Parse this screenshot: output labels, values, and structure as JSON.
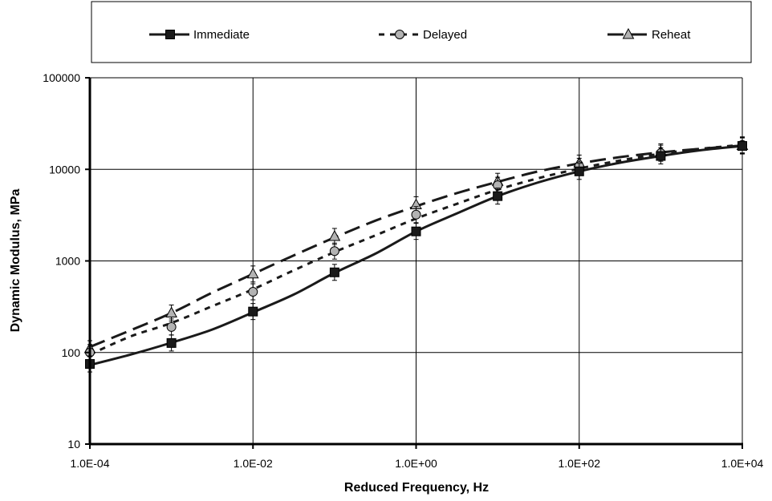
{
  "chart_data": {
    "type": "line",
    "xlabel": "Reduced Frequency, Hz",
    "ylabel": "Dynamic Modulus, MPa",
    "x_scale": "log",
    "y_scale": "log",
    "xlim": [
      0.0001,
      10000
    ],
    "ylim": [
      10,
      100000
    ],
    "x_ticks": [
      0.0001,
      0.01,
      1,
      100,
      10000
    ],
    "x_tick_labels": [
      "1.0E-04",
      "1.0E-02",
      "1.0E+00",
      "1.0E+02",
      "1.0E+04"
    ],
    "y_ticks": [
      10,
      100,
      1000,
      10000,
      100000
    ],
    "y_tick_labels": [
      "10",
      "100",
      "1000",
      "10000",
      "100000"
    ],
    "grid": true,
    "legend_position": "top",
    "series": [
      {
        "name": "Immediate",
        "marker": "square",
        "line_style": "solid",
        "color": "#1a1a1a",
        "x": [
          0.0001,
          0.001,
          0.01,
          0.1,
          1,
          10,
          100,
          1000,
          10000
        ],
        "y": [
          75,
          127,
          280,
          750,
          2100,
          5100,
          9500,
          14000,
          18000
        ],
        "curve_y": [
          73,
          95,
          128,
          178,
          275,
          430,
          740,
          1200,
          2100,
          3300,
          5100,
          7200,
          9500,
          11800,
          14000,
          16200,
          18000
        ]
      },
      {
        "name": "Delayed",
        "marker": "circle",
        "line_style": "dotted",
        "color": "#1a1a1a",
        "x": [
          0.0001,
          0.001,
          0.01,
          0.1,
          1,
          10,
          100,
          1000,
          10000
        ],
        "y": [
          100,
          190,
          460,
          1280,
          3200,
          6700,
          10800,
          15000,
          18500
        ],
        "curve_y": [
          95,
          150,
          210,
          320,
          490,
          790,
          1250,
          1900,
          2900,
          4200,
          6000,
          8000,
          10200,
          12500,
          14800,
          16800,
          18500
        ]
      },
      {
        "name": "Reheat",
        "marker": "triangle",
        "line_style": "dashed",
        "color": "#1a1a1a",
        "x": [
          0.0001,
          0.001,
          0.01,
          0.1,
          1,
          10,
          100,
          1000,
          10000
        ],
        "y": [
          110,
          270,
          720,
          1850,
          4100,
          7400,
          11700,
          15500,
          18200
        ],
        "curve_y": [
          115,
          175,
          270,
          450,
          720,
          1150,
          1800,
          2750,
          3950,
          5500,
          7300,
          9500,
          11600,
          13600,
          15300,
          16800,
          18200
        ]
      }
    ]
  }
}
